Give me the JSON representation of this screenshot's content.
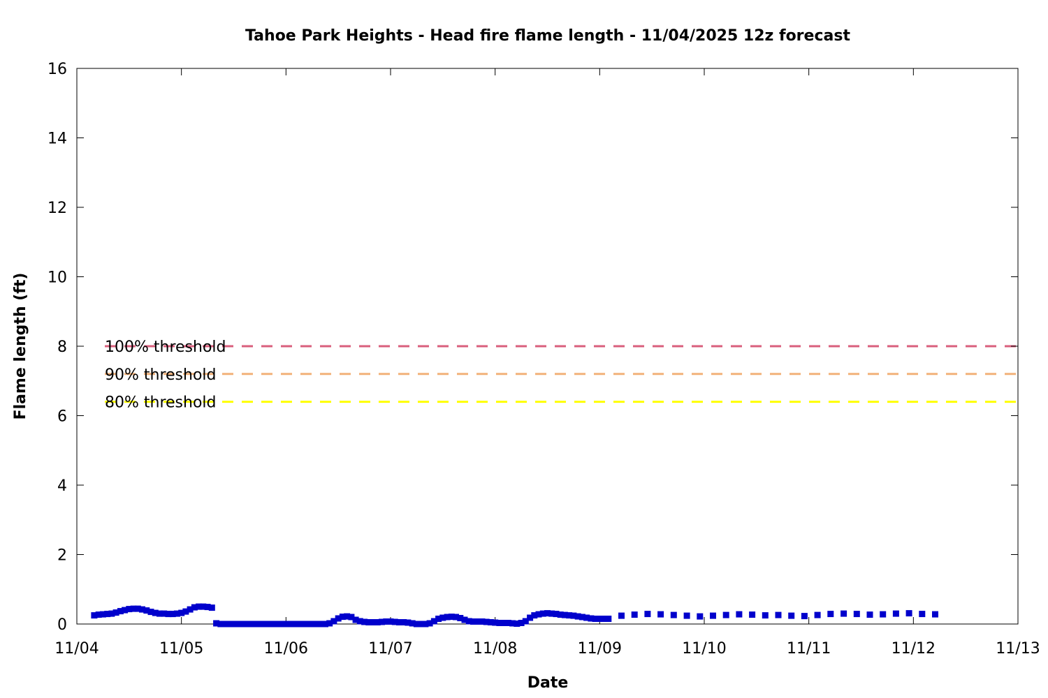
{
  "chart_data": {
    "type": "scatter",
    "title": "Tahoe Park Heights - Head fire flame length - 11/04/2025 12z forecast",
    "xlabel": "Date",
    "ylabel": "Flame length (ft)",
    "xlim": [
      "11/04",
      "11/13"
    ],
    "ylim": [
      0,
      16
    ],
    "x_ticks": [
      "11/04",
      "11/05",
      "11/06",
      "11/07",
      "11/08",
      "11/09",
      "11/10",
      "11/11",
      "11/12",
      "11/13"
    ],
    "y_ticks": [
      "0",
      "2",
      "4",
      "6",
      "8",
      "10",
      "12",
      "14",
      "16"
    ],
    "grid": false,
    "thresholds": [
      {
        "label": "100% threshold",
        "value": 8.0,
        "color": "#d95f7d"
      },
      {
        "label": "90% threshold",
        "value": 7.2,
        "color": "#f2b27a"
      },
      {
        "label": "80% threshold",
        "value": 6.4,
        "color": "#ffff00"
      }
    ],
    "series": [
      {
        "color": "#0000cc",
        "points": [
          [
            "11/04 04z",
            0.25
          ],
          [
            "11/04 05z",
            0.27
          ],
          [
            "11/04 06z",
            0.28
          ],
          [
            "11/04 07z",
            0.29
          ],
          [
            "11/04 08z",
            0.3
          ],
          [
            "11/04 09z",
            0.33
          ],
          [
            "11/04 10z",
            0.37
          ],
          [
            "11/04 11z",
            0.4
          ],
          [
            "11/04 12z",
            0.43
          ],
          [
            "11/04 13z",
            0.44
          ],
          [
            "11/04 14z",
            0.44
          ],
          [
            "11/04 15z",
            0.42
          ],
          [
            "11/04 16z",
            0.39
          ],
          [
            "11/04 17z",
            0.35
          ],
          [
            "11/04 18z",
            0.32
          ],
          [
            "11/04 19z",
            0.3
          ],
          [
            "11/04 20z",
            0.3
          ],
          [
            "11/04 21z",
            0.29
          ],
          [
            "11/04 22z",
            0.29
          ],
          [
            "11/04 23z",
            0.3
          ],
          [
            "11/05 00z",
            0.32
          ],
          [
            "11/05 01z",
            0.36
          ],
          [
            "11/05 02z",
            0.42
          ],
          [
            "11/05 03z",
            0.48
          ],
          [
            "11/05 04z",
            0.5
          ],
          [
            "11/05 05z",
            0.5
          ],
          [
            "11/05 06z",
            0.49
          ],
          [
            "11/05 07z",
            0.47
          ],
          [
            "11/05 08z",
            0.02
          ],
          [
            "11/05 09z",
            0.0
          ],
          [
            "11/05 10z",
            0.0
          ],
          [
            "11/05 11z",
            0.0
          ],
          [
            "11/05 12z",
            0.0
          ],
          [
            "11/05 13z",
            0.0
          ],
          [
            "11/05 14z",
            0.0
          ],
          [
            "11/05 15z",
            0.0
          ],
          [
            "11/05 16z",
            0.0
          ],
          [
            "11/05 17z",
            0.0
          ],
          [
            "11/05 18z",
            0.0
          ],
          [
            "11/05 19z",
            0.0
          ],
          [
            "11/05 20z",
            0.0
          ],
          [
            "11/05 21z",
            0.0
          ],
          [
            "11/05 22z",
            0.0
          ],
          [
            "11/05 23z",
            0.0
          ],
          [
            "11/06 00z",
            0.0
          ],
          [
            "11/06 01z",
            0.0
          ],
          [
            "11/06 02z",
            0.0
          ],
          [
            "11/06 03z",
            0.0
          ],
          [
            "11/06 04z",
            0.0
          ],
          [
            "11/06 05z",
            0.0
          ],
          [
            "11/06 06z",
            0.0
          ],
          [
            "11/06 07z",
            0.0
          ],
          [
            "11/06 08z",
            0.0
          ],
          [
            "11/06 09z",
            0.0
          ],
          [
            "11/06 10z",
            0.02
          ],
          [
            "11/06 11z",
            0.08
          ],
          [
            "11/06 12z",
            0.16
          ],
          [
            "11/06 13z",
            0.21
          ],
          [
            "11/06 14z",
            0.22
          ],
          [
            "11/06 15z",
            0.2
          ],
          [
            "11/06 16z",
            0.12
          ],
          [
            "11/06 17z",
            0.08
          ],
          [
            "11/06 18z",
            0.06
          ],
          [
            "11/06 19z",
            0.05
          ],
          [
            "11/06 20z",
            0.05
          ],
          [
            "11/06 21z",
            0.05
          ],
          [
            "11/06 22z",
            0.06
          ],
          [
            "11/06 23z",
            0.07
          ],
          [
            "11/07 00z",
            0.07
          ],
          [
            "11/07 01z",
            0.06
          ],
          [
            "11/07 02z",
            0.05
          ],
          [
            "11/07 03z",
            0.05
          ],
          [
            "11/07 04z",
            0.04
          ],
          [
            "11/07 05z",
            0.02
          ],
          [
            "11/07 06z",
            0.0
          ],
          [
            "11/07 07z",
            0.0
          ],
          [
            "11/07 08z",
            0.0
          ],
          [
            "11/07 09z",
            0.02
          ],
          [
            "11/07 10z",
            0.08
          ],
          [
            "11/07 11z",
            0.15
          ],
          [
            "11/07 12z",
            0.18
          ],
          [
            "11/07 13z",
            0.2
          ],
          [
            "11/07 14z",
            0.21
          ],
          [
            "11/07 15z",
            0.2
          ],
          [
            "11/07 16z",
            0.17
          ],
          [
            "11/07 17z",
            0.12
          ],
          [
            "11/07 18z",
            0.08
          ],
          [
            "11/07 19z",
            0.07
          ],
          [
            "11/07 20z",
            0.07
          ],
          [
            "11/07 21z",
            0.07
          ],
          [
            "11/07 22z",
            0.06
          ],
          [
            "11/07 23z",
            0.05
          ],
          [
            "11/08 00z",
            0.04
          ],
          [
            "11/08 01z",
            0.03
          ],
          [
            "11/08 02z",
            0.03
          ],
          [
            "11/08 03z",
            0.03
          ],
          [
            "11/08 04z",
            0.02
          ],
          [
            "11/08 05z",
            0.01
          ],
          [
            "11/08 06z",
            0.03
          ],
          [
            "11/08 07z",
            0.08
          ],
          [
            "11/08 08z",
            0.18
          ],
          [
            "11/08 09z",
            0.25
          ],
          [
            "11/08 10z",
            0.28
          ],
          [
            "11/08 11z",
            0.3
          ],
          [
            "11/08 12z",
            0.31
          ],
          [
            "11/08 13z",
            0.3
          ],
          [
            "11/08 14z",
            0.29
          ],
          [
            "11/08 15z",
            0.27
          ],
          [
            "11/08 16z",
            0.26
          ],
          [
            "11/08 17z",
            0.25
          ],
          [
            "11/08 18z",
            0.24
          ],
          [
            "11/08 19z",
            0.22
          ],
          [
            "11/08 20z",
            0.2
          ],
          [
            "11/08 21z",
            0.18
          ],
          [
            "11/08 22z",
            0.16
          ],
          [
            "11/08 23z",
            0.15
          ],
          [
            "11/09 00z",
            0.15
          ],
          [
            "11/09 01z",
            0.15
          ],
          [
            "11/09 02z",
            0.15
          ],
          [
            "11/09 05z",
            0.24
          ],
          [
            "11/09 08z",
            0.27
          ],
          [
            "11/09 11z",
            0.29
          ],
          [
            "11/09 14z",
            0.28
          ],
          [
            "11/09 17z",
            0.26
          ],
          [
            "11/09 20z",
            0.24
          ],
          [
            "11/09 23z",
            0.22
          ],
          [
            "11/10 02z",
            0.24
          ],
          [
            "11/10 05z",
            0.26
          ],
          [
            "11/10 08z",
            0.28
          ],
          [
            "11/10 11z",
            0.27
          ],
          [
            "11/10 14z",
            0.25
          ],
          [
            "11/10 17z",
            0.26
          ],
          [
            "11/10 20z",
            0.24
          ],
          [
            "11/10 23z",
            0.23
          ],
          [
            "11/11 02z",
            0.26
          ],
          [
            "11/11 05z",
            0.29
          ],
          [
            "11/11 08z",
            0.3
          ],
          [
            "11/11 11z",
            0.29
          ],
          [
            "11/11 14z",
            0.27
          ],
          [
            "11/11 17z",
            0.28
          ],
          [
            "11/11 20z",
            0.3
          ],
          [
            "11/11 23z",
            0.31
          ],
          [
            "11/12 02z",
            0.29
          ],
          [
            "11/12 05z",
            0.28
          ]
        ]
      }
    ]
  }
}
